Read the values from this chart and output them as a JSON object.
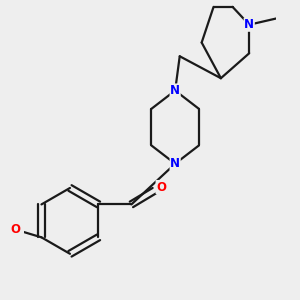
{
  "bg_color": "#eeeeee",
  "bond_color": "#1a1a1a",
  "nitrogen_color": "#0000ff",
  "oxygen_color": "#ff0000",
  "line_width": 1.6,
  "font_size": 8.5,
  "xlim": [
    -1.0,
    4.5
  ],
  "ylim": [
    -3.5,
    3.0
  ]
}
